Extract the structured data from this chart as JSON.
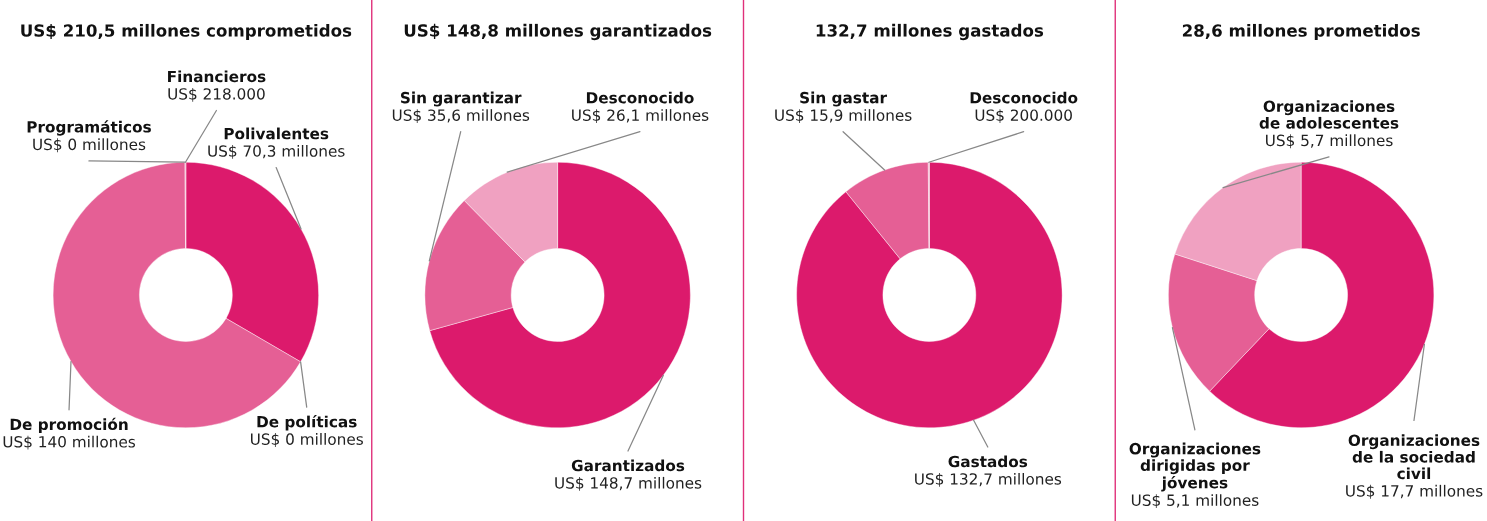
{
  "chart_data": [
    {
      "type": "donut",
      "title": "US$ 210,5 millones comprometidos",
      "categories": [
        "Polivalentes",
        "De políticas",
        "De promoción",
        "Programáticos",
        "Financieros"
      ],
      "values": [
        70.3,
        0,
        140,
        0,
        0.218
      ],
      "value_labels": [
        "US$ 70,3 millones",
        "US$ 0 millones",
        "US$ 140 millones",
        "US$ 0 millones",
        "US$ 218.000"
      ],
      "colors": [
        "#dc1a6c",
        "#e8739f",
        "#e55f95",
        "#efa0c0",
        "#efa0c0"
      ]
    },
    {
      "type": "donut",
      "title": "US$ 148,8 millones garantizados",
      "categories": [
        "Garantizados",
        "Sin garantizar",
        "Desconocido"
      ],
      "values": [
        148.7,
        35.6,
        26.1
      ],
      "value_labels": [
        "US$ 148,7 millones",
        "US$ 35,6 millones",
        "US$ 26,1 millones"
      ],
      "colors": [
        "#dc1a6c",
        "#e55f95",
        "#f0a1c1"
      ]
    },
    {
      "type": "donut",
      "title": "132,7 millones gastados",
      "categories": [
        "Gastados",
        "Sin gastar",
        "Desconocido"
      ],
      "values": [
        132.7,
        15.9,
        0.2
      ],
      "value_labels": [
        "US$ 132,7 millones",
        "US$ 15,9 millones",
        "US$ 200.000"
      ],
      "colors": [
        "#dc1a6c",
        "#e55f95",
        "#f0a1c1"
      ]
    },
    {
      "type": "donut",
      "title": "28,6 millones prometidos",
      "categories": [
        "Organizaciones\nde la sociedad\ncivil",
        "Organizaciones\ndirigidas por\njóvenes",
        "Organizaciones\nde adolescentes"
      ],
      "values": [
        17.7,
        5.1,
        5.7
      ],
      "value_labels": [
        "US$ 17,7 millones",
        "US$ 5,1 millones",
        "US$ 5,7 millones"
      ],
      "colors": [
        "#dc1a6c",
        "#e55f95",
        "#f0a1c1"
      ]
    }
  ]
}
